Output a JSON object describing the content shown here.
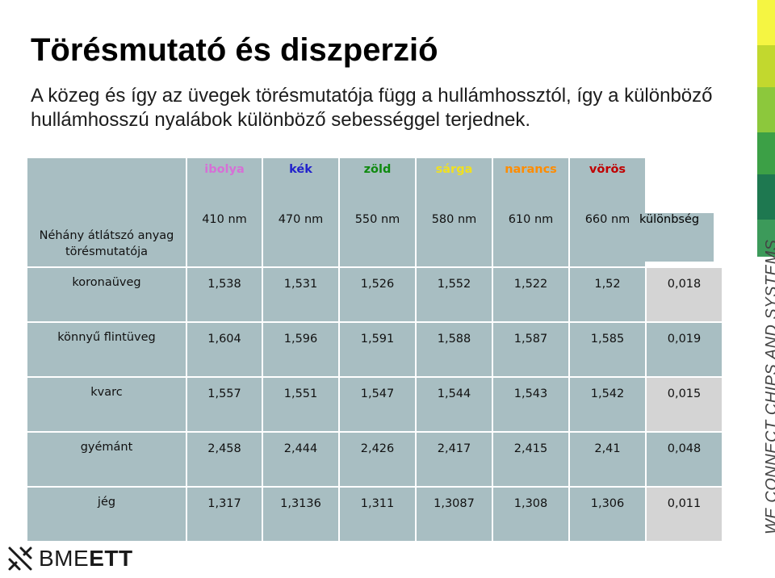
{
  "title": "Törésmutató és diszperzió",
  "subtitle": "A közeg és így az üvegek törésmutatója függ a hullámhossztól, így a különböző hullámhosszú nyalábok különböző sebességgel terjednek.",
  "table": {
    "header_label": "Néhány átlátszó anyag törésmutatója",
    "difference_label": "különbség",
    "colors": [
      {
        "name": "ibolya",
        "color": "#d670d6"
      },
      {
        "name": "kék",
        "color": "#2222cc"
      },
      {
        "name": "zöld",
        "color": "#0f8a0f"
      },
      {
        "name": "sárga",
        "color": "#f0e020"
      },
      {
        "name": "narancs",
        "color": "#ff8c00"
      },
      {
        "name": "vörös",
        "color": "#c00000"
      }
    ],
    "wavelengths": [
      "410 nm",
      "470 nm",
      "550 nm",
      "580 nm",
      "610 nm",
      "660 nm"
    ],
    "rows": [
      {
        "material": "koronaüveg",
        "values": [
          "1,538",
          "1,531",
          "1,526",
          "1,552",
          "1,522",
          "1,52"
        ],
        "difference": "0,018"
      },
      {
        "material": "könnyű flintüveg",
        "values": [
          "1,604",
          "1,596",
          "1,591",
          "1,588",
          "1,587",
          "1,585"
        ],
        "difference": "0,019"
      },
      {
        "material": "kvarc",
        "values": [
          "1,557",
          "1,551",
          "1,547",
          "1,544",
          "1,543",
          "1,542"
        ],
        "difference": "0,015"
      },
      {
        "material": "gyémánt",
        "values": [
          "2,458",
          "2,444",
          "2,426",
          "2,417",
          "2,415",
          "2,41"
        ],
        "difference": "0,048"
      },
      {
        "material": "jég",
        "values": [
          "1,317",
          "1,3136",
          "1,311",
          "1,3087",
          "1,308",
          "1,306"
        ],
        "difference": "0,011"
      }
    ]
  },
  "sidebar_colors": [
    "#f5f542",
    "#c2d82e",
    "#8cc83c",
    "#3ca046",
    "#1e7850",
    "#3c9a5a"
  ],
  "tagline": "WE CONNECT CHIPS AND SYSTEMS",
  "logo": {
    "text_light": "BME",
    "text_bold": "ETT"
  }
}
